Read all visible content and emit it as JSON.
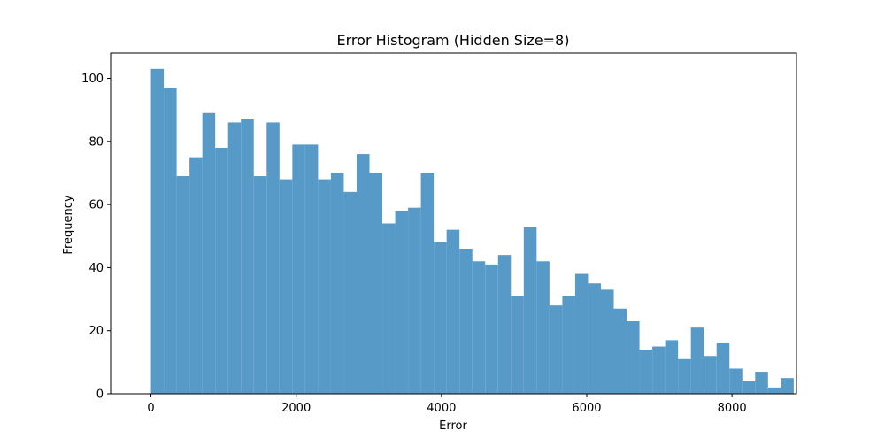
{
  "chart_data": {
    "type": "bar",
    "title": "Error Histogram (Hidden Size=8)",
    "xlabel": "Error",
    "ylabel": "Frequency",
    "xlim": [
      -555,
      8888
    ],
    "ylim": [
      0,
      108
    ],
    "xticks": [
      0,
      2000,
      4000,
      6000,
      8000
    ],
    "yticks": [
      0,
      20,
      40,
      60,
      80,
      100
    ],
    "bin_width": 177,
    "bin_start": 0,
    "values": [
      103,
      97,
      69,
      75,
      89,
      78,
      86,
      87,
      69,
      86,
      68,
      79,
      79,
      68,
      70,
      64,
      76,
      70,
      54,
      58,
      59,
      70,
      48,
      52,
      46,
      42,
      41,
      44,
      31,
      53,
      42,
      28,
      31,
      38,
      35,
      33,
      27,
      23,
      14,
      15,
      17,
      11,
      21,
      12,
      16,
      8,
      4,
      7,
      2,
      5
    ],
    "bar_color": "#5799c7",
    "grid": false
  }
}
